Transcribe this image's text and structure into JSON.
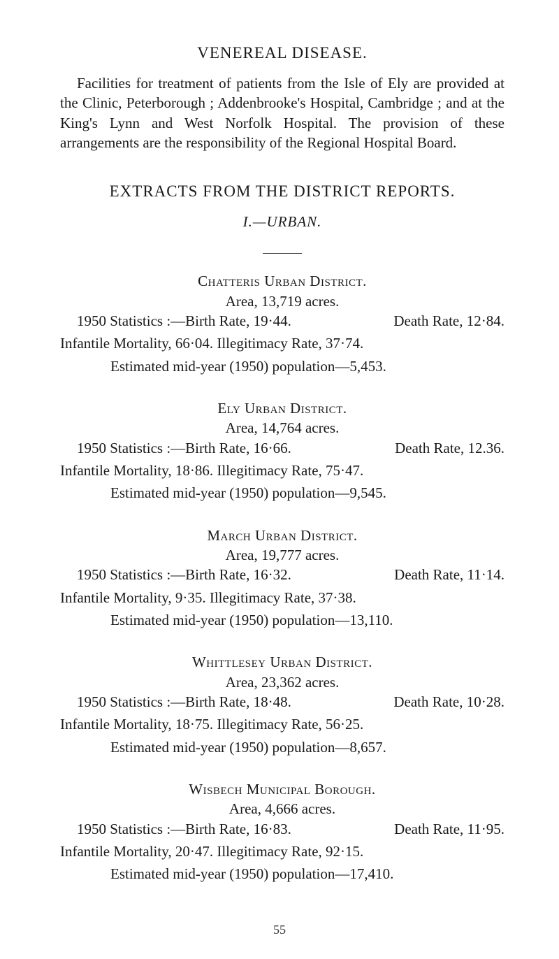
{
  "colors": {
    "text": "#1a1a1a",
    "background": "#ffffff",
    "rule": "#3a3a3a",
    "pagenum": "#3a3a3a"
  },
  "typography": {
    "body_fontsize_pt": 16,
    "heading_fontsize_pt": 17,
    "font_family": "Times New Roman serif"
  },
  "venereal": {
    "heading": "VENEREAL DISEASE.",
    "paragraph": "Facilities for treatment of patients from the Isle of Ely are provided at the Clinic, Peterborough ; Addenbrooke's Hospital, Cambridge ; and at the King's Lynn and West Norfolk Hospital. The provision of these arrangements are the responsibility of the Regional Hospital Board."
  },
  "extracts": {
    "heading": "EXTRACTS FROM THE DISTRICT REPORTS.",
    "subhead": "I.—URBAN."
  },
  "districts": [
    {
      "name": "Chatteris Urban District.",
      "area": "Area, 13,719 acres.",
      "stats_left": "1950 Statistics :—Birth Rate, 19·44.",
      "stats_right": "Death Rate, 12·84.",
      "line2": "Infantile Mortality, 66·04.   Illegitimacy Rate, 37·74.",
      "line3": "Estimated mid-year (1950) population—5,453."
    },
    {
      "name": "Ely Urban District.",
      "area": "Area, 14,764 acres.",
      "stats_left": "1950 Statistics :—Birth Rate, 16·66.",
      "stats_right": "Death Rate, 12.36.",
      "line2": "Infantile Mortality, 18·86.   Illegitimacy Rate, 75·47.",
      "line3": "Estimated mid-year (1950) population—9,545."
    },
    {
      "name": "March Urban District.",
      "area": "Area, 19,777 acres.",
      "stats_left": "1950 Statistics :—Birth Rate, 16·32.",
      "stats_right": "Death Rate, 11·14.",
      "line2": "Infantile Mortality, 9·35.   Illegitimacy Rate, 37·38.",
      "line3": "Estimated mid-year (1950) population—13,110."
    },
    {
      "name": "Whittlesey Urban District.",
      "area": "Area, 23,362 acres.",
      "stats_left": "1950 Statistics :—Birth Rate, 18·48.",
      "stats_right": "Death Rate, 10·28.",
      "line2": "Infantile Mortality, 18·75.   Illegitimacy Rate, 56·25.",
      "line3": "Estimated mid-year (1950) population—8,657."
    },
    {
      "name": "Wisbech Municipal Borough.",
      "area": "Area, 4,666 acres.",
      "stats_left": "1950 Statistics :—Birth Rate, 16·83.",
      "stats_right": "Death Rate, 11·95.",
      "line2": "Infantile Mortality, 20·47.   Illegitimacy Rate, 92·15.",
      "line3": "Estimated mid-year (1950) population—17,410."
    }
  ],
  "page_number": "55"
}
